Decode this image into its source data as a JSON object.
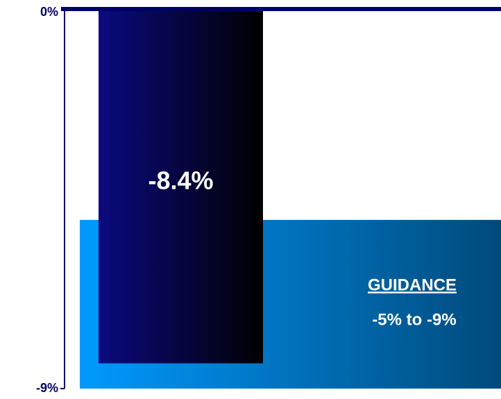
{
  "chart_data": {
    "type": "bar",
    "categories": [
      null
    ],
    "values": [
      -8.4
    ],
    "value_labels": [
      "-8.4%"
    ],
    "color": [
      "#0a0a80",
      "#000000"
    ],
    "guidance": {
      "label": "GUIDANCE",
      "range_label": "-5% to -9%",
      "values": [
        -5,
        -9
      ],
      "color": [
        "#0099ff",
        "#004a7a"
      ]
    },
    "ylim": [
      0,
      -9
    ],
    "yticks": [
      {
        "value": 0,
        "label": "0%"
      },
      {
        "value": -9,
        "label": "-9%"
      }
    ]
  }
}
